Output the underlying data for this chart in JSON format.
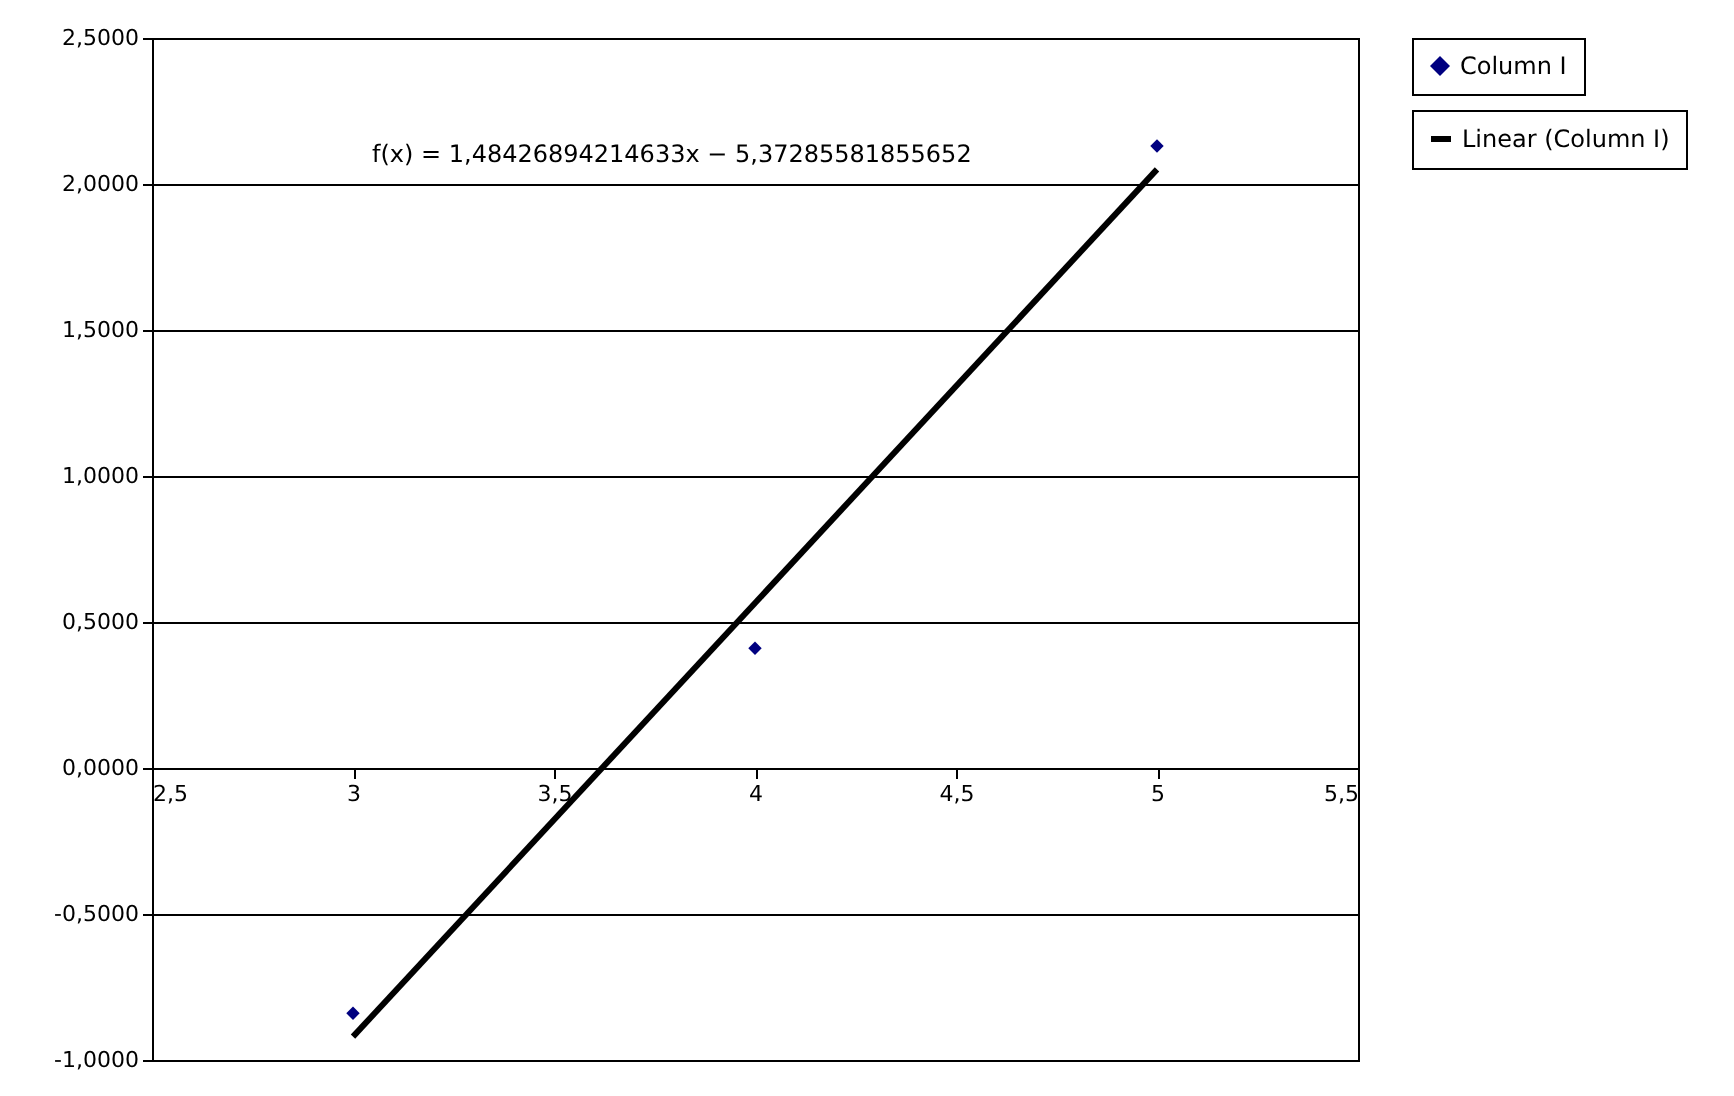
{
  "chart_data": {
    "type": "scatter",
    "grid": "y",
    "legend": "right",
    "xlim": [
      2.5,
      5.5
    ],
    "xticks": [
      {
        "value": 2.5,
        "label": "2,5"
      },
      3,
      {
        "value": 3.5,
        "label": "3,5"
      },
      4,
      {
        "value": 4.5,
        "label": "4,5"
      },
      5,
      {
        "value": 5.5,
        "label": "5,5"
      }
    ],
    "ylim": [
      -1,
      2.5
    ],
    "yticks": [
      {
        "value": -1,
        "label": "-1,0000"
      },
      {
        "value": -0.5,
        "label": "-0,5000"
      },
      {
        "value": 0,
        "label": "0,0000"
      },
      {
        "value": 0.5,
        "label": "0,5000"
      },
      {
        "value": 1,
        "label": "1,0000"
      },
      {
        "value": 1.5,
        "label": "1,5000"
      },
      {
        "value": 2,
        "label": "2,0000"
      },
      {
        "value": 2.5,
        "label": "2,5000"
      }
    ],
    "annotations": [
      "f(x) = 1,48426894214633x − 5,37285581855652"
    ],
    "series": [
      {
        "name": "Column I",
        "color": "#000080",
        "x": [
          3,
          4,
          5
        ],
        "values": [
          -0.84,
          0.41,
          2.13
        ],
        "marker": "diamond"
      },
      {
        "name": "Linear (Column I)",
        "type": "line",
        "color": "#000000",
        "x": [
          3,
          5
        ],
        "values": [
          -0.92,
          2.05
        ]
      }
    ]
  }
}
